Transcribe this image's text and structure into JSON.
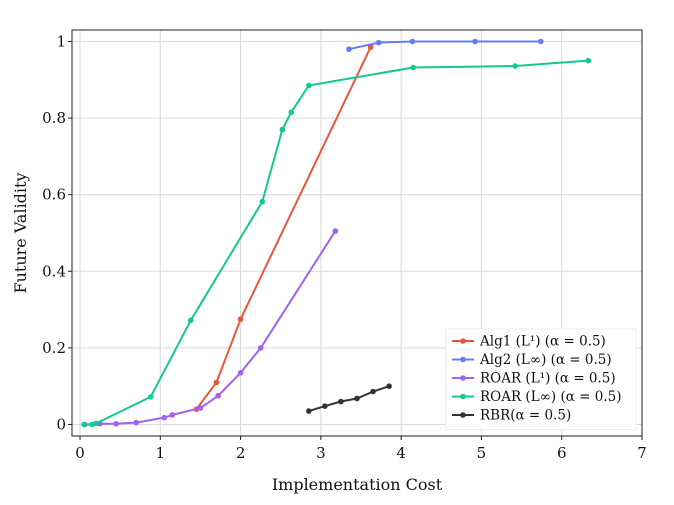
{
  "chart_data": {
    "type": "line",
    "title": "",
    "xlabel": "Implementation Cost",
    "ylabel": "Future Validity",
    "xlim": [
      -0.1,
      7.0
    ],
    "ylim": [
      -0.03,
      1.03
    ],
    "xticks": [
      0,
      1,
      2,
      3,
      4,
      5,
      6,
      7
    ],
    "yticks": [
      0,
      0.2,
      0.4,
      0.6,
      0.8,
      1
    ],
    "xtick_labels": [
      "0",
      "1",
      "2",
      "3",
      "4",
      "5",
      "6",
      "7"
    ],
    "ytick_labels": [
      "0",
      "0.2",
      "0.4",
      "0.6",
      "0.8",
      "1"
    ],
    "grid": true,
    "legend_position": "bottom-right",
    "series": [
      {
        "name": "Alg1 (L¹) (α = 0.5)",
        "color": "#e8573a",
        "x": [
          1.45,
          1.7,
          2.0,
          3.62
        ],
        "y": [
          0.04,
          0.11,
          0.275,
          0.985
        ]
      },
      {
        "name": "Alg2 (L∞) (α = 0.5)",
        "color": "#6979f2",
        "x": [
          3.35,
          3.72,
          4.14,
          4.92,
          5.74
        ],
        "y": [
          0.98,
          0.997,
          1.0,
          1.0,
          1.0
        ]
      },
      {
        "name": "ROAR (L¹) (α = 0.5)",
        "color": "#a062f0",
        "x": [
          0.06,
          0.25,
          0.45,
          0.7,
          1.05,
          1.15,
          1.5,
          1.72,
          2.0,
          2.25,
          3.18
        ],
        "y": [
          0.0,
          0.002,
          0.002,
          0.005,
          0.018,
          0.025,
          0.043,
          0.075,
          0.135,
          0.2,
          0.505
        ]
      },
      {
        "name": "ROAR (L∞) (α = 0.5)",
        "color": "#16c791",
        "x": [
          0.05,
          0.15,
          0.2,
          0.88,
          1.38,
          2.27,
          2.52,
          2.63,
          2.85,
          4.15,
          5.42,
          6.33
        ],
        "y": [
          0.0,
          0.0,
          0.003,
          0.072,
          0.272,
          0.582,
          0.77,
          0.815,
          0.885,
          0.932,
          0.936,
          0.95
        ]
      },
      {
        "name": "RBR(α = 0.5)",
        "color": "#333333",
        "x": [
          2.85,
          3.05,
          3.25,
          3.45,
          3.65,
          3.85
        ],
        "y": [
          0.035,
          0.048,
          0.06,
          0.068,
          0.086,
          0.1
        ]
      }
    ]
  }
}
